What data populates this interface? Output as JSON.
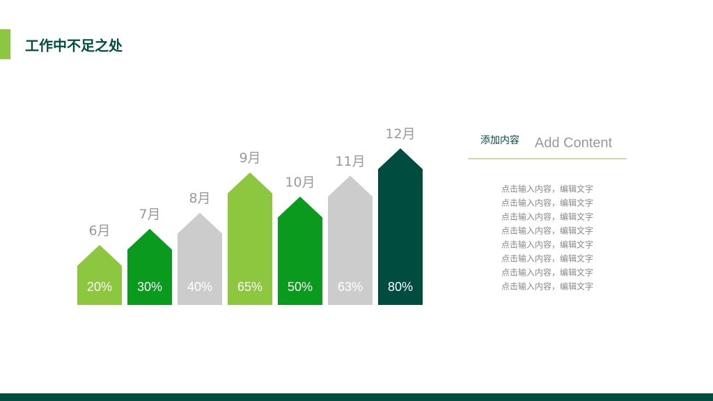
{
  "header": {
    "title": "工作中不足之处"
  },
  "chart_data": {
    "type": "arrow-bar",
    "categories": [
      "6月",
      "7月",
      "8月",
      "9月",
      "10月",
      "11月",
      "12月"
    ],
    "values": [
      20,
      30,
      40,
      65,
      50,
      63,
      80
    ],
    "value_labels": [
      "20%",
      "30%",
      "40%",
      "65%",
      "50%",
      "63%",
      "80%"
    ],
    "colors": [
      "#8dc63f",
      "#0a9a1e",
      "#cccccc",
      "#8dc63f",
      "#0a9a1e",
      "#cccccc",
      "#004d40"
    ]
  },
  "side": {
    "heading": "添加内容",
    "subheading": "Add Content",
    "lines": [
      "点击输入内容，编辑文字",
      "点击输入内容，编辑文字",
      "点击输入内容，编辑文字",
      "点击输入内容，编辑文字",
      "点击输入内容，编辑文字",
      "点击输入内容，编辑文字",
      "点击输入内容，编辑文字",
      "点击输入内容，编辑文字"
    ]
  }
}
